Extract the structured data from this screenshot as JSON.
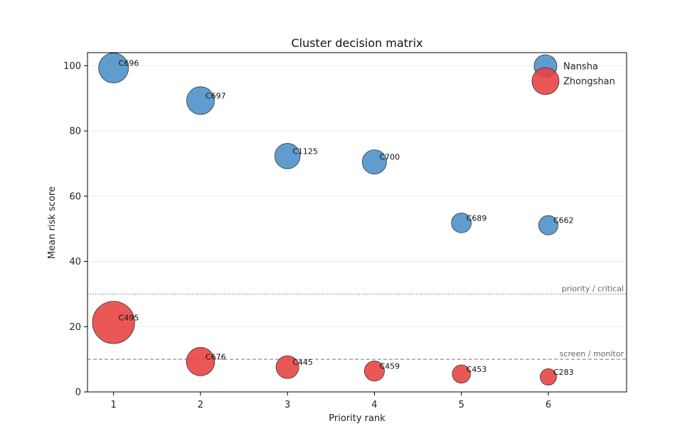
{
  "chart_data": {
    "type": "scatter",
    "title": "Cluster decision matrix",
    "xlabel": "Priority rank",
    "ylabel": "Mean risk score",
    "xlim": [
      0.7,
      6.9
    ],
    "ylim": [
      0,
      104
    ],
    "xticks": [
      1,
      2,
      3,
      4,
      5,
      6
    ],
    "yticks": [
      0,
      20,
      40,
      60,
      80,
      100
    ],
    "grid": "horizontal",
    "legend_position": "top-right",
    "series": [
      {
        "name": "Nansha",
        "color": "#4a8fc7",
        "points": [
          {
            "x": 1,
            "y": 99.3,
            "label": "C696",
            "size": 1.0
          },
          {
            "x": 2,
            "y": 89.3,
            "label": "C697",
            "size": 0.86
          },
          {
            "x": 3,
            "y": 72.3,
            "label": "C1125",
            "size": 0.72
          },
          {
            "x": 4,
            "y": 70.5,
            "label": "C700",
            "size": 0.66
          },
          {
            "x": 5,
            "y": 51.8,
            "label": "C689",
            "size": 0.44
          },
          {
            "x": 6,
            "y": 51.1,
            "label": "C662",
            "size": 0.42
          }
        ]
      },
      {
        "name": "Zhongshan",
        "color": "#e84040",
        "points": [
          {
            "x": 1,
            "y": 21.3,
            "label": "C495",
            "size": 2.0
          },
          {
            "x": 2,
            "y": 9.3,
            "label": "C676",
            "size": 0.9
          },
          {
            "x": 3,
            "y": 7.6,
            "label": "C445",
            "size": 0.58
          },
          {
            "x": 4,
            "y": 6.4,
            "label": "C459",
            "size": 0.45
          },
          {
            "x": 5,
            "y": 5.5,
            "label": "C453",
            "size": 0.37
          },
          {
            "x": 6,
            "y": 4.6,
            "label": "C283",
            "size": 0.3
          }
        ]
      }
    ],
    "reference_lines": [
      {
        "y": 30,
        "label": "priority / critical",
        "style": "dotted"
      },
      {
        "y": 10,
        "label": "screen / monitor",
        "style": "dashed"
      }
    ]
  }
}
